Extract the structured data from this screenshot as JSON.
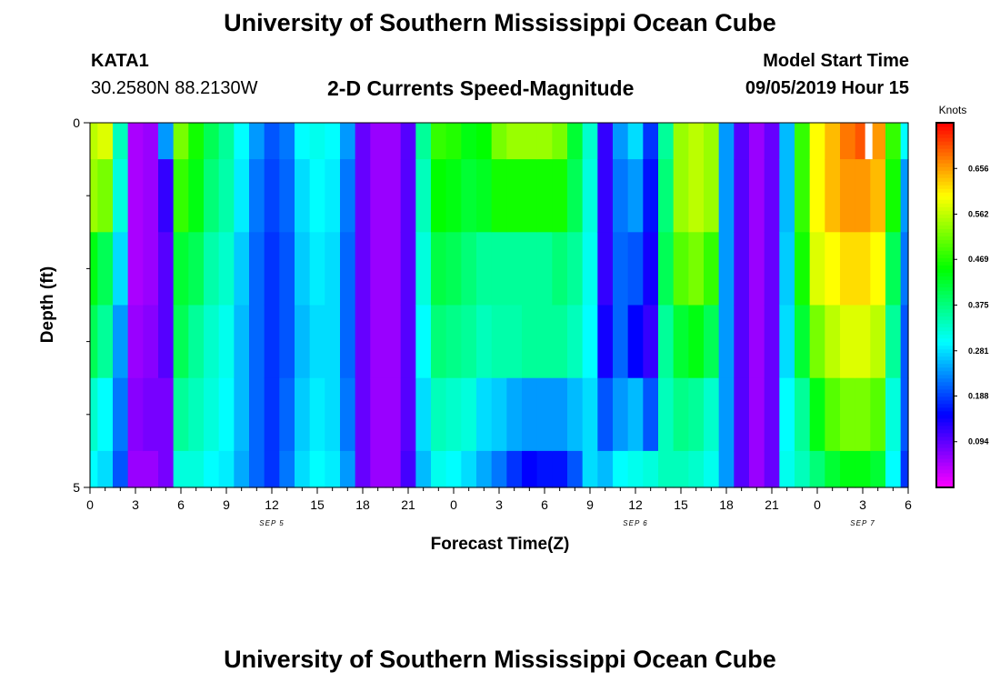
{
  "header": {
    "title": "University of Southern Mississippi Ocean Cube",
    "station": "KATA1",
    "coords": "30.2580N 88.2130W",
    "subtitle": "2-D Currents Speed-Magnitude",
    "model_start_label": "Model Start Time",
    "model_start_value": "09/05/2019 Hour 15"
  },
  "footer": {
    "title": "University of Southern Mississippi Ocean Cube"
  },
  "colors": {
    "background": "#ffffff",
    "axis": "#000000"
  },
  "chart_data": {
    "type": "heatmap",
    "xlabel": "Forecast Time(Z)",
    "ylabel": "Depth (ft)",
    "ylim": [
      0,
      5
    ],
    "y_ticks": [
      "0",
      "5"
    ],
    "y_minor_ticks": [
      1,
      2,
      3,
      4
    ],
    "x_ticks": [
      "0",
      "3",
      "6",
      "9",
      "12",
      "15",
      "18",
      "21",
      "0",
      "3",
      "6",
      "9",
      "12",
      "15",
      "18",
      "21",
      "0",
      "3",
      "6"
    ],
    "x_range_hours": [
      0,
      54
    ],
    "date_labels": [
      {
        "text": "SEP 5",
        "hour": 12
      },
      {
        "text": "SEP 6",
        "hour": 36
      },
      {
        "text": "SEP 7",
        "hour": 51
      }
    ],
    "depth_bands": [
      0,
      0.5,
      1.5,
      2.5,
      3.5,
      4.5,
      5
    ],
    "colorbar": {
      "unit": "Knots",
      "min": 0.0,
      "max": 0.75,
      "ticks": [
        "0.094",
        "0.188",
        "0.281",
        "0.375",
        "0.469",
        "0.562",
        "0.656"
      ]
    },
    "speed_profiles": [
      {
        "hour": 0,
        "values": [
          0.56,
          0.54,
          0.44,
          0.4,
          0.33,
          0.3
        ]
      },
      {
        "hour": 1,
        "values": [
          0.58,
          0.52,
          0.4,
          0.36,
          0.3,
          0.28
        ]
      },
      {
        "hour": 2,
        "values": [
          0.34,
          0.32,
          0.28,
          0.24,
          0.22,
          0.2
        ]
      },
      {
        "hour": 3,
        "values": [
          0.05,
          0.05,
          0.05,
          0.06,
          0.07,
          0.06
        ]
      },
      {
        "hour": 4,
        "values": [
          0.06,
          0.06,
          0.06,
          0.07,
          0.08,
          0.06
        ]
      },
      {
        "hour": 5,
        "values": [
          0.24,
          0.12,
          0.1,
          0.1,
          0.08,
          0.08
        ]
      },
      {
        "hour": 6,
        "values": [
          0.52,
          0.48,
          0.42,
          0.4,
          0.36,
          0.32
        ]
      },
      {
        "hour": 7,
        "values": [
          0.46,
          0.44,
          0.4,
          0.36,
          0.34,
          0.32
        ]
      },
      {
        "hour": 8,
        "values": [
          0.4,
          0.38,
          0.35,
          0.33,
          0.32,
          0.3
        ]
      },
      {
        "hour": 9,
        "values": [
          0.36,
          0.35,
          0.33,
          0.31,
          0.3,
          0.29
        ]
      },
      {
        "hour": 10,
        "values": [
          0.3,
          0.29,
          0.27,
          0.26,
          0.26,
          0.25
        ]
      },
      {
        "hour": 11,
        "values": [
          0.24,
          0.22,
          0.21,
          0.21,
          0.21,
          0.21
        ]
      },
      {
        "hour": 12,
        "values": [
          0.2,
          0.19,
          0.18,
          0.18,
          0.18,
          0.18
        ]
      },
      {
        "hour": 13,
        "values": [
          0.22,
          0.21,
          0.2,
          0.2,
          0.21,
          0.22
        ]
      },
      {
        "hour": 14,
        "values": [
          0.3,
          0.28,
          0.27,
          0.26,
          0.27,
          0.28
        ]
      },
      {
        "hour": 15,
        "values": [
          0.31,
          0.3,
          0.29,
          0.28,
          0.29,
          0.3
        ]
      },
      {
        "hour": 16,
        "values": [
          0.3,
          0.29,
          0.28,
          0.28,
          0.28,
          0.29
        ]
      },
      {
        "hour": 17,
        "values": [
          0.24,
          0.22,
          0.21,
          0.21,
          0.22,
          0.24
        ]
      },
      {
        "hour": 18,
        "values": [
          0.09,
          0.09,
          0.09,
          0.09,
          0.09,
          0.09
        ]
      },
      {
        "hour": 19,
        "values": [
          0.06,
          0.06,
          0.06,
          0.06,
          0.06,
          0.06
        ]
      },
      {
        "hour": 20,
        "values": [
          0.06,
          0.06,
          0.06,
          0.06,
          0.06,
          0.06
        ]
      },
      {
        "hour": 21,
        "values": [
          0.1,
          0.1,
          0.1,
          0.1,
          0.1,
          0.11
        ]
      },
      {
        "hour": 22,
        "values": [
          0.36,
          0.34,
          0.32,
          0.3,
          0.28,
          0.26
        ]
      },
      {
        "hour": 23,
        "values": [
          0.48,
          0.45,
          0.41,
          0.38,
          0.34,
          0.31
        ]
      },
      {
        "hour": 24,
        "values": [
          0.47,
          0.44,
          0.4,
          0.37,
          0.33,
          0.3
        ]
      },
      {
        "hour": 25,
        "values": [
          0.44,
          0.42,
          0.38,
          0.36,
          0.32,
          0.28
        ]
      },
      {
        "hour": 26,
        "values": [
          0.45,
          0.43,
          0.36,
          0.34,
          0.28,
          0.25
        ]
      },
      {
        "hour": 27,
        "values": [
          0.52,
          0.46,
          0.36,
          0.35,
          0.27,
          0.22
        ]
      },
      {
        "hour": 28,
        "values": [
          0.54,
          0.46,
          0.36,
          0.35,
          0.25,
          0.18
        ]
      },
      {
        "hour": 29,
        "values": [
          0.54,
          0.46,
          0.36,
          0.36,
          0.24,
          0.15
        ]
      },
      {
        "hour": 30,
        "values": [
          0.54,
          0.46,
          0.36,
          0.36,
          0.24,
          0.16
        ]
      },
      {
        "hour": 31,
        "values": [
          0.52,
          0.46,
          0.38,
          0.36,
          0.24,
          0.16
        ]
      },
      {
        "hour": 32,
        "values": [
          0.42,
          0.4,
          0.36,
          0.34,
          0.26,
          0.2
        ]
      },
      {
        "hour": 33,
        "values": [
          0.33,
          0.32,
          0.31,
          0.3,
          0.28,
          0.28
        ]
      },
      {
        "hour": 34,
        "values": [
          0.12,
          0.12,
          0.12,
          0.14,
          0.2,
          0.26
        ]
      },
      {
        "hour": 35,
        "values": [
          0.24,
          0.22,
          0.21,
          0.21,
          0.24,
          0.3
        ]
      },
      {
        "hour": 36,
        "values": [
          0.28,
          0.24,
          0.2,
          0.15,
          0.26,
          0.31
        ]
      },
      {
        "hour": 37,
        "values": [
          0.18,
          0.16,
          0.14,
          0.12,
          0.2,
          0.32
        ]
      },
      {
        "hour": 38,
        "values": [
          0.36,
          0.38,
          0.4,
          0.36,
          0.34,
          0.34
        ]
      },
      {
        "hour": 39,
        "values": [
          0.54,
          0.54,
          0.5,
          0.42,
          0.37,
          0.34
        ]
      },
      {
        "hour": 40,
        "values": [
          0.56,
          0.56,
          0.52,
          0.44,
          0.36,
          0.33
        ]
      },
      {
        "hour": 41,
        "values": [
          0.54,
          0.54,
          0.48,
          0.4,
          0.33,
          0.31
        ]
      },
      {
        "hour": 42,
        "values": [
          0.24,
          0.24,
          0.24,
          0.24,
          0.24,
          0.24
        ]
      },
      {
        "hour": 43,
        "values": [
          0.1,
          0.1,
          0.1,
          0.1,
          0.1,
          0.1
        ]
      },
      {
        "hour": 44,
        "values": [
          0.06,
          0.06,
          0.06,
          0.06,
          0.06,
          0.06
        ]
      },
      {
        "hour": 45,
        "values": [
          0.09,
          0.09,
          0.09,
          0.09,
          0.09,
          0.09
        ]
      },
      {
        "hour": 46,
        "values": [
          0.26,
          0.26,
          0.27,
          0.28,
          0.3,
          0.31
        ]
      },
      {
        "hour": 47,
        "values": [
          0.48,
          0.48,
          0.46,
          0.42,
          0.36,
          0.34
        ]
      },
      {
        "hour": 48,
        "values": [
          0.6,
          0.6,
          0.58,
          0.52,
          0.44,
          0.38
        ]
      },
      {
        "hour": 49,
        "values": [
          0.64,
          0.64,
          0.6,
          0.56,
          0.5,
          0.42
        ]
      },
      {
        "hour": 50,
        "values": [
          0.68,
          0.66,
          0.62,
          0.58,
          0.52,
          0.44
        ]
      },
      {
        "hour": 51,
        "values": [
          0.7,
          0.66,
          0.62,
          0.58,
          0.52,
          0.44
        ]
      },
      {
        "hour": 52,
        "values": [
          0.66,
          0.64,
          0.6,
          0.56,
          0.5,
          0.42
        ]
      },
      {
        "hour": 53,
        "values": [
          0.48,
          0.46,
          0.4,
          0.36,
          0.32,
          0.3
        ]
      },
      {
        "hour": 54,
        "values": [
          0.3,
          0.24,
          0.22,
          0.2,
          0.2,
          0.18
        ]
      }
    ],
    "missing_cells": [
      {
        "hour": 51.4,
        "band": 0
      }
    ]
  }
}
